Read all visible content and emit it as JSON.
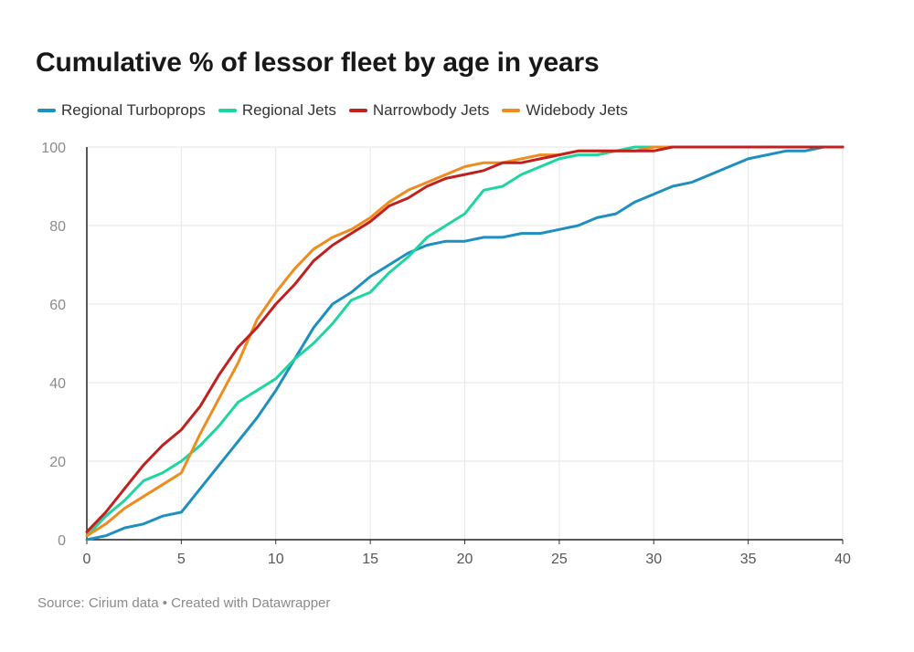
{
  "chart_data": {
    "type": "line",
    "title": "Cumulative % of lessor fleet by age in years",
    "xlabel": "",
    "ylabel": "",
    "xlim": [
      0,
      40
    ],
    "ylim": [
      0,
      100
    ],
    "x_ticks": [
      0,
      5,
      10,
      15,
      20,
      25,
      30,
      35,
      40
    ],
    "y_ticks": [
      0,
      20,
      40,
      60,
      80,
      100
    ],
    "grid": true,
    "legend_position": "top-left",
    "x": [
      0,
      1,
      2,
      3,
      4,
      5,
      6,
      7,
      8,
      9,
      10,
      11,
      12,
      13,
      14,
      15,
      16,
      17,
      18,
      19,
      20,
      21,
      22,
      23,
      24,
      25,
      26,
      27,
      28,
      29,
      30,
      31,
      32,
      33,
      34,
      35,
      36,
      37,
      38,
      39,
      40
    ],
    "series": [
      {
        "name": "Regional Turboprops",
        "color": "#1f8fbf",
        "values": [
          0,
          1,
          3,
          4,
          6,
          7,
          13,
          19,
          25,
          31,
          38,
          46,
          54,
          60,
          63,
          67,
          70,
          73,
          75,
          76,
          76,
          77,
          77,
          78,
          78,
          79,
          80,
          82,
          83,
          86,
          88,
          90,
          91,
          93,
          95,
          97,
          98,
          99,
          99,
          100,
          100
        ]
      },
      {
        "name": "Regional Jets",
        "color": "#1dd5a0",
        "values": [
          1,
          6,
          10,
          15,
          17,
          20,
          24,
          29,
          35,
          38,
          41,
          46,
          50,
          55,
          61,
          63,
          68,
          72,
          77,
          80,
          83,
          89,
          90,
          93,
          95,
          97,
          98,
          98,
          99,
          100,
          100,
          100,
          100,
          100,
          100,
          100,
          100,
          100,
          100,
          100,
          100
        ]
      },
      {
        "name": "Narrowbody Jets",
        "color": "#c0211f",
        "values": [
          2,
          7,
          13,
          19,
          24,
          28,
          34,
          42,
          49,
          54,
          60,
          65,
          71,
          75,
          78,
          81,
          85,
          87,
          90,
          92,
          93,
          94,
          96,
          96,
          97,
          98,
          99,
          99,
          99,
          99,
          99,
          100,
          100,
          100,
          100,
          100,
          100,
          100,
          100,
          100,
          100
        ]
      },
      {
        "name": "Widebody Jets",
        "color": "#f08c1e",
        "values": [
          1,
          4,
          8,
          11,
          14,
          17,
          27,
          36,
          45,
          56,
          63,
          69,
          74,
          77,
          79,
          82,
          86,
          89,
          91,
          93,
          95,
          96,
          96,
          97,
          98,
          98,
          99,
          99,
          99,
          99,
          100,
          100,
          100,
          100,
          100,
          100,
          100,
          100,
          100,
          100,
          100
        ]
      }
    ]
  },
  "source": "Source: Cirium data • Created with Datawrapper"
}
